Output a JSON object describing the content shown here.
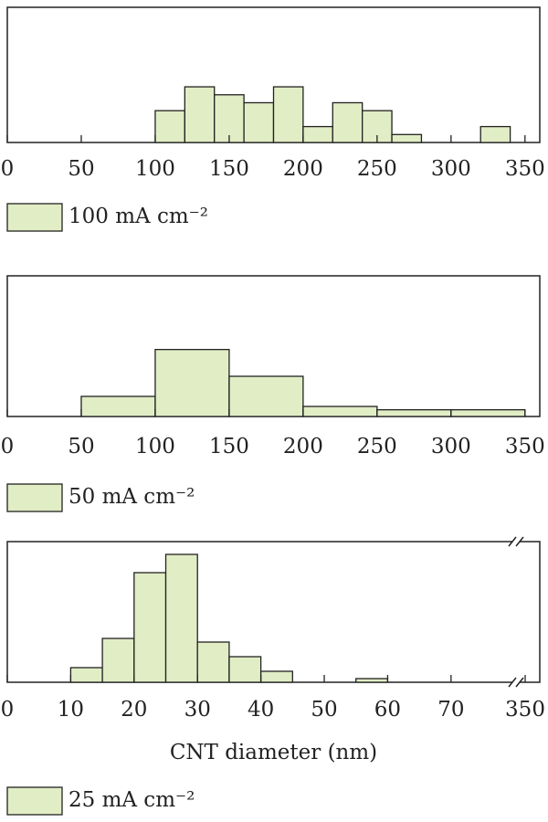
{
  "chart_data": [
    {
      "type": "histogram",
      "bins": [
        100,
        120,
        140,
        160,
        180,
        200,
        220,
        240,
        260,
        280,
        300,
        320,
        340
      ],
      "series": [
        {
          "name": "100 mA cm⁻²",
          "color": "#e1edc5",
          "values": [
            4,
            7,
            6,
            5,
            7,
            2,
            5,
            4,
            1,
            0,
            0,
            2
          ]
        }
      ],
      "xlim": [
        0,
        360
      ],
      "xticks": [
        0,
        50,
        100,
        150,
        200,
        250,
        300,
        350
      ],
      "ylim": [
        0,
        17
      ]
    },
    {
      "type": "histogram",
      "bins": [
        50,
        100,
        150,
        200,
        250,
        300,
        350
      ],
      "series": [
        {
          "name": "50 mA cm⁻²",
          "color": "#e1edc5",
          "values": [
            6,
            20,
            12,
            3,
            2,
            2
          ]
        }
      ],
      "xlim": [
        0,
        360
      ],
      "xticks": [
        0,
        50,
        100,
        150,
        200,
        250,
        300,
        350
      ],
      "ylim": [
        0,
        42
      ]
    },
    {
      "type": "histogram",
      "bins": [
        10,
        15,
        20,
        25,
        30,
        35,
        40,
        45,
        50,
        55,
        60
      ],
      "series": [
        {
          "name": "25 mA cm⁻²",
          "color": "#e1edc5",
          "values": [
            4,
            12,
            30,
            35,
            11,
            7,
            3,
            0,
            0,
            1
          ]
        }
      ],
      "xlim": [
        0,
        84
      ],
      "xticks": [
        0,
        10,
        20,
        30,
        40,
        50,
        60,
        70,
        350
      ],
      "axis_break": true,
      "ylim": [
        0,
        38.5
      ],
      "x_label": "CNT diameter (nm)"
    }
  ]
}
